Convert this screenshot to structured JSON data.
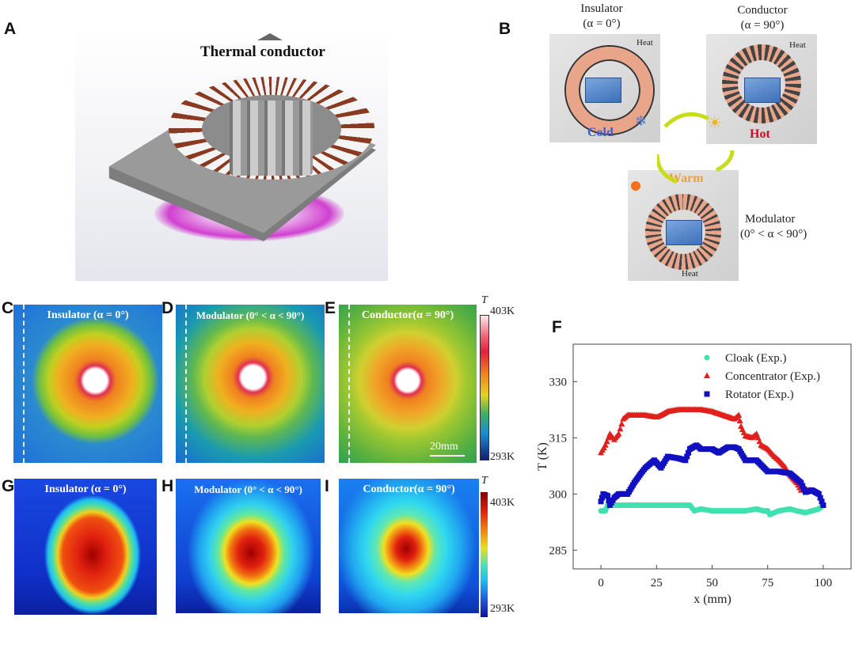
{
  "panels": {
    "A": {
      "label": "A",
      "caption": "Thermal conductor"
    },
    "B": {
      "label": "B",
      "insulator": {
        "title": "Insulator",
        "angle": "(α = 0°)",
        "heat": "Heat",
        "state": "Cold"
      },
      "conductor": {
        "title": "Conductor",
        "angle": "(α = 90°)",
        "heat": "Heat",
        "state": "Hot"
      },
      "modulator": {
        "title": "Modulator",
        "angle": "(0° < α < 90°)",
        "heat": "Heat",
        "state": "Warm"
      },
      "colors": {
        "cold": "#3a5fd0",
        "hot": "#c8102e",
        "warm": "#f0a030",
        "arrow": "#c8dc1e"
      }
    },
    "C": {
      "label": "C",
      "title": "Insulator (α = 0°)"
    },
    "D": {
      "label": "D",
      "title": "Modulator (0° < α < 90°)"
    },
    "E": {
      "label": "E",
      "title": "Conductor(α = 90°)",
      "scalebar": "20mm"
    },
    "G": {
      "label": "G",
      "title": "Insulator (α = 0°)"
    },
    "H": {
      "label": "H",
      "title": "Modulator (0° < α < 90°)"
    },
    "I": {
      "label": "I",
      "title": "Conductor(α = 90°)"
    },
    "F": {
      "label": "F"
    }
  },
  "colorbar_exp": {
    "symbol": "T",
    "max": "403K",
    "min": "293K"
  },
  "colorbar_sim": {
    "symbol": "T",
    "max": "403K",
    "min": "293K"
  },
  "chart_data": {
    "type": "scatter",
    "xlabel": "x (mm)",
    "ylabel": "T (K)",
    "xlim": [
      -12.5,
      112.5
    ],
    "ylim": [
      280,
      340
    ],
    "xticks": [
      "0",
      "25",
      "50",
      "75",
      "100"
    ],
    "yticks": [
      "285",
      "300",
      "315",
      "330"
    ],
    "legend_position": "top-right",
    "grid": false,
    "series": [
      {
        "name": "Cloak (Exp.)",
        "marker": "circle",
        "color": "#40e0b0",
        "x": [
          0,
          2,
          3,
          5,
          10,
          20,
          30,
          40,
          42,
          45,
          50,
          55,
          60,
          65,
          70,
          73,
          75,
          76,
          80,
          85,
          88,
          92,
          95,
          98,
          100
        ],
        "y": [
          295.5,
          295.5,
          297,
          297,
          297,
          297,
          297,
          297,
          295.5,
          296,
          295.5,
          295.5,
          295.5,
          295.5,
          296,
          295.5,
          295.5,
          294.5,
          295.5,
          296,
          295.5,
          295,
          295.5,
          296,
          297
        ]
      },
      {
        "name": "Concentrator (Exp.)",
        "marker": "triangle",
        "color": "#e0201c",
        "x": [
          0,
          2,
          4,
          6,
          8,
          10,
          12,
          15,
          20,
          25,
          27,
          30,
          35,
          40,
          45,
          50,
          55,
          60,
          62,
          63,
          65,
          68,
          70,
          72,
          75,
          78,
          80,
          83,
          85,
          88,
          90,
          93,
          95,
          98,
          100
        ],
        "y": [
          311,
          313,
          316,
          314.5,
          316,
          320,
          321,
          321,
          321,
          320.5,
          321,
          322,
          322.5,
          322.5,
          322.5,
          322,
          321,
          320,
          321,
          318,
          315.5,
          315,
          316,
          313,
          312,
          310,
          309,
          307,
          305,
          303,
          301,
          301,
          301,
          300,
          297
        ]
      },
      {
        "name": "Rotator (Exp.)",
        "marker": "square",
        "color": "#1010c0",
        "x": [
          0,
          1,
          3,
          4,
          6,
          8,
          12,
          15,
          18,
          20,
          24,
          27,
          30,
          35,
          38,
          40,
          43,
          45,
          50,
          53,
          57,
          60,
          62,
          65,
          70,
          75,
          80,
          85,
          88,
          90,
          92,
          95,
          98,
          100
        ],
        "y": [
          298,
          300,
          299.5,
          297,
          299,
          300,
          300,
          303,
          305.5,
          307,
          309,
          307,
          310,
          309.5,
          309,
          312,
          313,
          312,
          312,
          311,
          312.5,
          312.5,
          312,
          309,
          309,
          306,
          306,
          305.5,
          304,
          303,
          300.5,
          301,
          300,
          297
        ]
      }
    ]
  }
}
